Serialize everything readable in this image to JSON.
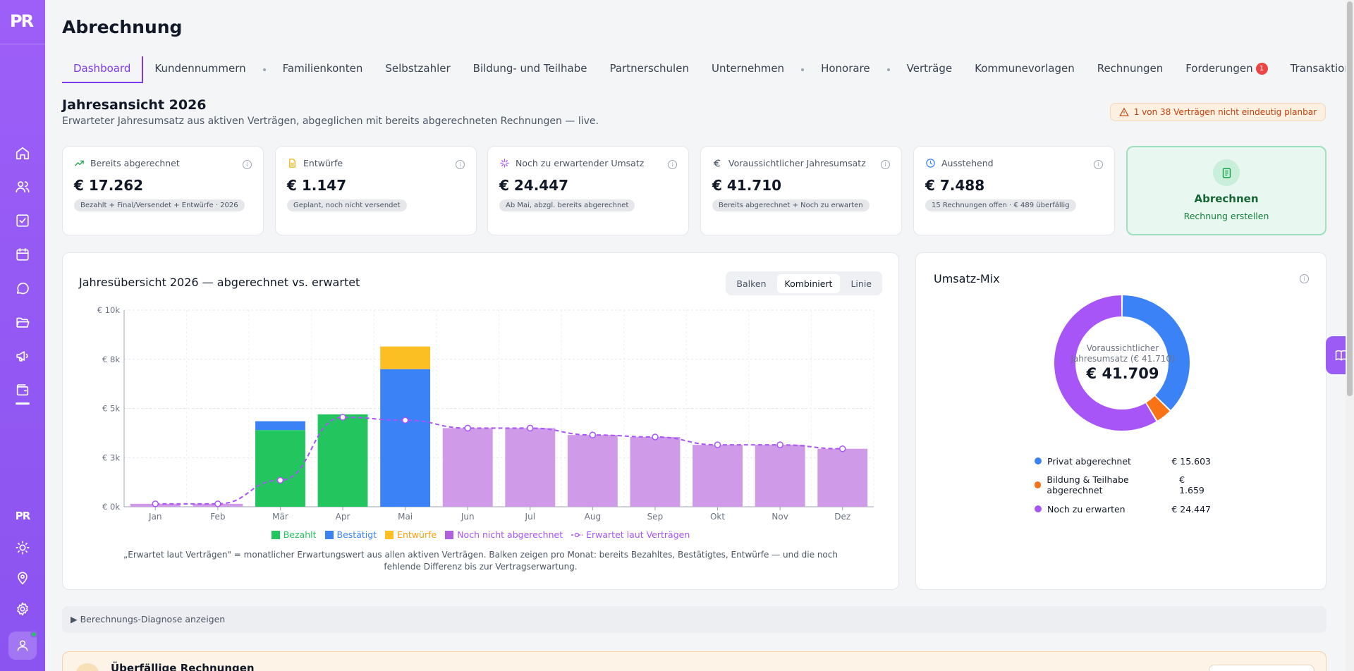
{
  "app": {
    "logo": "PR"
  },
  "sidebar": {
    "icons": [
      "home-icon",
      "users-icon",
      "checklist-icon",
      "calendar-icon",
      "chat-icon",
      "folder-icon",
      "megaphone-icon",
      "wallet-icon"
    ],
    "bottom_icons": [
      "logo-small-icon",
      "sun-icon",
      "location-pin-icon",
      "gear-icon"
    ]
  },
  "page": {
    "title": "Abrechnung"
  },
  "tabs": [
    {
      "label": "Dashboard",
      "active": true
    },
    {
      "label": "Kundennummern"
    },
    {
      "label": "Familienkonten"
    },
    {
      "label": "Selbstzahler"
    },
    {
      "label": "Bildung- und Teilhabe"
    },
    {
      "label": "Partnerschulen"
    },
    {
      "label": "Unternehmen"
    },
    {
      "label": "Honorare"
    },
    {
      "label": "Verträge"
    },
    {
      "label": "Kommunevorlagen"
    },
    {
      "label": "Rechnungen"
    },
    {
      "label": "Forderungen",
      "badge": "1"
    },
    {
      "label": "Transaktionen"
    }
  ],
  "section": {
    "title": "Jahresansicht 2026",
    "subtitle": "Erwarteter Jahresumsatz aus aktiven Verträgen, abgeglichen mit bereits abgerechneten Rechnungen — live.",
    "warning": "1 von 38 Verträgen nicht eindeutig planbar"
  },
  "kpis": [
    {
      "label": "Bereits abgerechnet",
      "value": "€ 17.262",
      "pill": "Bezahlt + Final/Versendet + Entwürfe · 2026",
      "icon": "trend-up-icon",
      "color": "#16a34a"
    },
    {
      "label": "Entwürfe",
      "value": "€ 1.147",
      "pill": "Geplant, noch nicht versendet",
      "icon": "document-icon",
      "color": "#eab308"
    },
    {
      "label": "Noch zu erwartender Umsatz",
      "value": "€ 24.447",
      "pill": "Ab Mai, abzgl. bereits abgerechnet",
      "icon": "sparkle-icon",
      "color": "#a855f7"
    },
    {
      "label": "Voraussichtlicher Jahresumsatz",
      "value": "€ 41.710",
      "pill": "Bereits abgerechnet + Noch zu erwarten",
      "icon": "euro-icon",
      "color": "#4b5563"
    },
    {
      "label": "Ausstehend",
      "value": "€ 7.488",
      "pill": "15 Rechnungen offen · € 489 überfällig",
      "icon": "clock-icon",
      "color": "#3b82f6"
    }
  ],
  "cta": {
    "title": "Abrechnen",
    "subtitle": "Rechnung erstellen"
  },
  "chart": {
    "title": "Jahresübersicht 2026 — abgerechnet vs. erwartet",
    "modes": [
      {
        "label": "Balken"
      },
      {
        "label": "Kombiniert",
        "active": true
      },
      {
        "label": "Linie"
      }
    ],
    "note": "„Erwartet laut Verträgen\" = monatlicher Erwartungswert aus allen aktiven Verträgen. Balken zeigen pro Monat: bereits Bezahltes, Bestätigtes, Entwürfe — und die noch fehlende Differenz bis zur Vertragserwartung."
  },
  "chart_data": {
    "type": "bar",
    "stacked": true,
    "categories": [
      "Jan",
      "Feb",
      "Mär",
      "Apr",
      "Mai",
      "Jun",
      "Jul",
      "Aug",
      "Sep",
      "Okt",
      "Nov",
      "Dez"
    ],
    "y_ticks": [
      "€ 0k",
      "€ 3k",
      "€ 5k",
      "€ 8k",
      "€ 10k"
    ],
    "ylim": [
      0,
      10000
    ],
    "grid": true,
    "legend_position": "bottom",
    "series": [
      {
        "name": "Bezahlt",
        "color": "#22c55e",
        "values": [
          0,
          0,
          3900,
          4700,
          0,
          0,
          0,
          0,
          0,
          0,
          0,
          0
        ]
      },
      {
        "name": "Bestätigt",
        "color": "#3b82f6",
        "values": [
          0,
          0,
          450,
          0,
          7000,
          0,
          0,
          0,
          0,
          0,
          0,
          0
        ]
      },
      {
        "name": "Entwürfe",
        "color": "#fbbf24",
        "values": [
          0,
          0,
          0,
          0,
          1150,
          0,
          0,
          0,
          0,
          0,
          0,
          0
        ]
      },
      {
        "name": "Noch nicht abgerechnet",
        "color": "#cf9ae8",
        "legend_color": "#b25ee0",
        "values": [
          150,
          150,
          0,
          0,
          0,
          4000,
          4000,
          3650,
          3550,
          3150,
          3150,
          2950
        ]
      }
    ],
    "line": {
      "name": "Erwartet laut Verträgen",
      "color": "#a855f7",
      "style": "dashed",
      "values": [
        150,
        150,
        1350,
        4550,
        4400,
        4000,
        4000,
        3650,
        3550,
        3150,
        3150,
        2950
      ]
    }
  },
  "mix": {
    "title": "Umsatz-Mix",
    "center_label": "Voraussichtlicher Jahresumsatz (€ 41.710)",
    "center_value": "€ 41.709",
    "items": [
      {
        "label": "Privat abgerechnet",
        "value": "€ 15.603",
        "color": "#3b82f6"
      },
      {
        "label": "Bildung & Teilhabe abgerechnet",
        "value": "€ 1.659",
        "color": "#f97316"
      },
      {
        "label": "Noch zu erwarten",
        "value": "€ 24.447",
        "color": "#a855f7"
      }
    ],
    "values": [
      15603,
      1659,
      24447
    ]
  },
  "diagnose": {
    "label": "▶ Berechnungs-Diagnose anzeigen"
  },
  "overdue": {
    "title": "Überfällige Rechnungen"
  }
}
